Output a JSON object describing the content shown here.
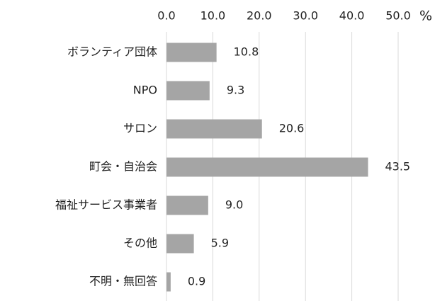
{
  "chart_data": {
    "type": "bar",
    "orientation": "horizontal",
    "categories": [
      "ボランティア団体",
      "NPO",
      "サロン",
      "町会・自治会",
      "福祉サービス事業者",
      "その他",
      "不明・無回答"
    ],
    "values": [
      10.8,
      9.3,
      20.6,
      43.5,
      9.0,
      5.9,
      0.9
    ],
    "value_labels": [
      "10.8",
      "9.3",
      "20.6",
      "43.5",
      "9.0",
      "5.9",
      "0.9"
    ],
    "color": "#a5a5a5",
    "xlabel": "%",
    "xlim": [
      0,
      50
    ],
    "xticks": [
      {
        "value": 0,
        "label": "0.0"
      },
      {
        "value": 10,
        "label": "10.0"
      },
      {
        "value": 20,
        "label": "20.0"
      },
      {
        "value": 30,
        "label": "30.0"
      },
      {
        "value": 40,
        "label": "40.0"
      },
      {
        "value": 50,
        "label": "50.0"
      }
    ],
    "grid": true
  }
}
